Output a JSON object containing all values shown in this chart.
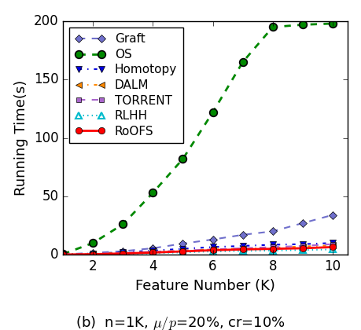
{
  "x": [
    1,
    2,
    3,
    4,
    5,
    6,
    7,
    8,
    9,
    10
  ],
  "graft": [
    0.3,
    1.5,
    3.0,
    5.5,
    9.5,
    13.0,
    17.0,
    20.0,
    27.0,
    34.0
  ],
  "os": [
    0.5,
    10.0,
    26.0,
    53.0,
    82.0,
    122.0,
    165.0,
    195.0,
    197.0,
    198.0
  ],
  "homotopy": [
    0.3,
    1.0,
    2.0,
    3.5,
    5.0,
    6.5,
    7.5,
    8.5,
    9.0,
    10.0
  ],
  "dalm": [
    0.2,
    0.8,
    1.5,
    2.5,
    3.5,
    4.5,
    5.0,
    6.0,
    7.0,
    8.0
  ],
  "torrent": [
    0.2,
    0.8,
    1.5,
    2.5,
    3.5,
    4.5,
    5.5,
    6.5,
    7.5,
    9.0
  ],
  "rlhh": [
    0.1,
    0.4,
    0.8,
    1.2,
    2.0,
    2.8,
    3.2,
    3.5,
    4.0,
    4.5
  ],
  "roofs": [
    0.1,
    0.4,
    1.0,
    1.8,
    2.8,
    3.8,
    4.5,
    5.0,
    5.5,
    6.5
  ],
  "xlabel": "Feature Number (K)",
  "ylabel": "Running Time(s)",
  "caption": "(b)  n=1K, $\\mu/p$=20%, cr=10%",
  "ylim": [
    0,
    200
  ],
  "yticks": [
    0,
    50,
    100,
    150,
    200
  ],
  "xticks": [
    2,
    4,
    6,
    8,
    10
  ],
  "xlim_left": 1.0,
  "xlim_right": 10.5,
  "graft_color": "#7070cc",
  "os_color": "#008800",
  "homotopy_color": "#0000dd",
  "dalm_color": "#ff8800",
  "torrent_color": "#aa66cc",
  "rlhh_color": "#00bbcc",
  "roofs_color": "#ff0000",
  "legend_fontsize": 11,
  "axis_fontsize": 13,
  "tick_fontsize": 12
}
